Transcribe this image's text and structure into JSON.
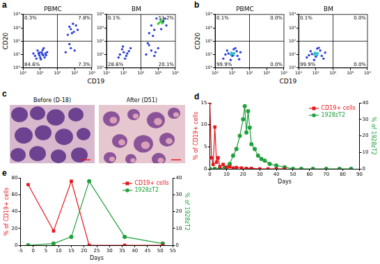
{
  "chart_data": [
    {
      "panel": "a",
      "type": "scatter",
      "log": true,
      "grid": false,
      "x_label": "CD19",
      "y_label": "CD20",
      "xlim": [
        1,
        10000
      ],
      "ylim": [
        1,
        10000
      ],
      "xticks": [
        {
          "value": 1,
          "label": "10⁰"
        },
        {
          "value": 10,
          "label": "10¹"
        },
        {
          "value": 100,
          "label": "10²"
        },
        {
          "value": 1000,
          "label": "10³"
        },
        {
          "value": 10000,
          "label": "10⁴"
        }
      ],
      "yticks": [
        {
          "value": 1,
          "label": "10⁰"
        },
        {
          "value": 10,
          "label": "10¹"
        },
        {
          "value": 100,
          "label": "10²"
        },
        {
          "value": 1000,
          "label": "10³"
        },
        {
          "value": 10000,
          "label": "10⁴"
        }
      ],
      "gates": {
        "x": 100,
        "y": 100
      },
      "plots": [
        {
          "title": "PBMC",
          "quadrant_labels": {
            "upper_left": "0.3%",
            "upper_right": "7.8%",
            "lower_left": "84.6%",
            "lower_right": "7.3%"
          },
          "series": [
            {
              "color": "#2b3fd6",
              "values": [
                [
                  5,
                  8
                ],
                [
                  8,
                  12
                ],
                [
                  10,
                  6
                ],
                [
                  12,
                  15
                ],
                [
                  15,
                  9
                ],
                [
                  7,
                  20
                ],
                [
                  20,
                  12
                ],
                [
                  6,
                  5
                ],
                [
                  9,
                  9
                ],
                [
                  14,
                  22
                ],
                [
                  11,
                  4.5
                ],
                [
                  18,
                  6
                ],
                [
                  25,
                  15
                ],
                [
                  4,
                  12
                ],
                [
                  16,
                  30
                ],
                [
                  9,
                  14
                ],
                [
                  13,
                  11
                ],
                [
                  22,
                  9
                ]
              ]
            },
            {
              "color": "#2b3fd6",
              "values": [
                [
                  400,
                  300
                ],
                [
                  600,
                  800
                ],
                [
                  900,
                  500
                ],
                [
                  1200,
                  1500
                ],
                [
                  500,
                  1200
                ],
                [
                  800,
                  2000
                ],
                [
                  1500,
                  700
                ],
                [
                  700,
                  400
                ]
              ]
            },
            {
              "color": "#2b3fd6",
              "values": [
                [
                  300,
                  15
                ],
                [
                  600,
                  30
                ],
                [
                  1000,
                  20
                ],
                [
                  500,
                  60
                ]
              ]
            }
          ]
        },
        {
          "title": "BM",
          "quadrant_labels": {
            "upper_left": "0.1%",
            "upper_right": "51.2%",
            "lower_left": "28.6%",
            "lower_right": "20.1%"
          },
          "series": [
            {
              "color": "#2b3fd6",
              "values": [
                [
                  6,
                  10
                ],
                [
                  10,
                  15
                ],
                [
                  14,
                  8
                ],
                [
                  8,
                  25
                ],
                [
                  20,
                  18
                ],
                [
                  12,
                  5
                ],
                [
                  5,
                  6
                ],
                [
                  25,
                  30
                ],
                [
                  16,
                  12
                ],
                [
                  9,
                  40
                ]
              ]
            },
            {
              "color": "#2b3fd6",
              "values": [
                [
                  300,
                  400
                ],
                [
                  500,
                  250
                ],
                [
                  2000,
                  3000
                ],
                [
                  800,
                  5000
                ],
                [
                  3000,
                  1500
                ],
                [
                  400,
                  1500
                ],
                [
                  1500,
                  800
                ],
                [
                  2500,
                  5000
                ],
                [
                  600,
                  700
                ]
              ]
            },
            {
              "color": "#3cc83c",
              "values": [
                [
                  1200,
                  2500
                ],
                [
                  1500,
                  3000
                ],
                [
                  1800,
                  2200
                ],
                [
                  1000,
                  2000
                ],
                [
                  2000,
                  3500
                ],
                [
                  1400,
                  4000
                ],
                [
                  1700,
                  2800
                ]
              ]
            },
            {
              "color": "#2b3fd6",
              "values": [
                [
                  200,
                  10
                ],
                [
                  400,
                  20
                ],
                [
                  700,
                  15
                ],
                [
                  1000,
                  30
                ],
                [
                  300,
                  50
                ],
                [
                  600,
                  8
                ],
                [
                  250,
                  70
                ]
              ]
            }
          ]
        }
      ]
    },
    {
      "panel": "b",
      "type": "scatter",
      "log": true,
      "grid": false,
      "x_label": "CD19",
      "y_label": "CD20",
      "xlim": [
        1,
        10000
      ],
      "ylim": [
        1,
        10000
      ],
      "xticks": [
        {
          "value": 1,
          "label": "10⁰"
        },
        {
          "value": 10,
          "label": "10¹"
        },
        {
          "value": 100,
          "label": "10²"
        },
        {
          "value": 1000,
          "label": "10³"
        },
        {
          "value": 10000,
          "label": "10⁴"
        }
      ],
      "yticks": [
        {
          "value": 1,
          "label": "10⁰"
        },
        {
          "value": 10,
          "label": "10¹"
        },
        {
          "value": 100,
          "label": "10²"
        },
        {
          "value": 1000,
          "label": "10³"
        },
        {
          "value": 10000,
          "label": "10⁴"
        }
      ],
      "gates": {
        "x": 100,
        "y": 100
      },
      "plots": [
        {
          "title": "PBMC",
          "quadrant_labels": {
            "upper_left": "0.1%",
            "upper_right": "0.0%",
            "lower_left": "99.9%",
            "lower_right": "0.0%"
          },
          "series": [
            {
              "color": "#2b3fd6",
              "values": [
                [
                  3,
                  5
                ],
                [
                  5,
                  20
                ],
                [
                  8,
                  4
                ],
                [
                  12,
                  25
                ],
                [
                  20,
                  8
                ],
                [
                  30,
                  15
                ],
                [
                  6,
                  12
                ],
                [
                  15,
                  30
                ],
                [
                  25,
                  4.5
                ],
                [
                  4,
                  10
                ],
                [
                  10,
                  8
                ],
                [
                  18,
                  18
                ]
              ]
            },
            {
              "color": "#2fc0c8",
              "values": [
                [
                  8,
                  10
                ],
                [
                  10,
                  12
                ],
                [
                  12,
                  9
                ],
                [
                  9,
                  14
                ],
                [
                  11,
                  11
                ],
                [
                  13,
                  13
                ]
              ]
            }
          ]
        },
        {
          "title": "BM",
          "quadrant_labels": {
            "upper_left": "0.1%",
            "upper_right": "0.0%",
            "lower_left": "99.9%",
            "lower_right": "0.0%"
          },
          "series": [
            {
              "color": "#2b3fd6",
              "values": [
                [
                  3,
                  6
                ],
                [
                  5,
                  18
                ],
                [
                  8,
                  4
                ],
                [
                  12,
                  28
                ],
                [
                  22,
                  8
                ],
                [
                  35,
                  14
                ],
                [
                  6,
                  11
                ],
                [
                  15,
                  32
                ],
                [
                  28,
                  5
                ],
                [
                  4,
                  9
                ],
                [
                  10,
                  7
                ],
                [
                  18,
                  20
                ]
              ]
            },
            {
              "color": "#2fc0c8",
              "values": [
                [
                  8,
                  10
                ],
                [
                  10,
                  12
                ],
                [
                  12,
                  9
                ],
                [
                  9,
                  14
                ],
                [
                  11,
                  11
                ],
                [
                  13,
                  13
                ]
              ]
            }
          ]
        }
      ]
    },
    {
      "panel": "d",
      "type": "line",
      "grid": false,
      "legend": "upper right",
      "x_label": "Days",
      "y_label": "% of CD19+ cells",
      "y2_label": "% of 1928zT2",
      "xlim": [
        0,
        90
      ],
      "xticks": [
        0,
        10,
        20,
        30,
        40,
        50,
        60,
        70,
        80,
        90
      ],
      "ylim": [
        0,
        15
      ],
      "yticks": [
        0,
        5,
        10,
        15
      ],
      "y2lim": [
        0,
        40
      ],
      "y2ticks": [
        0,
        10,
        20,
        30,
        40
      ],
      "series": [
        {
          "name": "CD19+ cells",
          "color": "#e8141b",
          "marker": "square",
          "x": [
            0,
            1,
            2,
            3,
            4,
            5,
            6,
            8,
            10,
            12,
            14,
            16,
            19,
            22,
            25,
            30,
            35,
            40,
            45
          ],
          "values": [
            15,
            2.5,
            1,
            9.5,
            1.5,
            2.5,
            0.5,
            1,
            0.3,
            0.5,
            0.2,
            0.3,
            0.2,
            0.1,
            0.1,
            0,
            0,
            0,
            0
          ]
        },
        {
          "name": "1928zT2",
          "color": "#1fa03c",
          "marker": "circle",
          "axis": "y2",
          "x": [
            0,
            3,
            6,
            9,
            12,
            14,
            16,
            18,
            20,
            21,
            22,
            23,
            24,
            25,
            27,
            29,
            31,
            33,
            36,
            40,
            45,
            50,
            55,
            62,
            70,
            78,
            85
          ],
          "values": [
            0,
            0,
            0,
            1,
            3,
            8,
            12,
            20,
            30,
            38,
            22,
            35,
            25,
            15,
            12,
            8,
            6,
            5,
            3,
            2,
            1,
            0,
            0,
            0,
            0,
            0,
            0
          ]
        }
      ]
    },
    {
      "panel": "e",
      "type": "line",
      "grid": false,
      "legend": "upper right",
      "x_label": "Days",
      "y_label": "% of CD19+ cells",
      "y2_label": "% of 1928zT2",
      "xlim": [
        -5,
        55
      ],
      "xticks": [
        -5,
        0,
        5,
        10,
        15,
        20,
        25,
        30,
        35,
        40,
        45,
        50,
        55
      ],
      "ylim": [
        0,
        80
      ],
      "yticks": [
        0,
        20,
        40,
        60,
        80
      ],
      "y2lim": [
        0,
        40
      ],
      "y2ticks": [
        0,
        10,
        20,
        30,
        40
      ],
      "series": [
        {
          "name": "CD19+ cells",
          "color": "#e8141b",
          "marker": "square",
          "x": [
            -2,
            8,
            15,
            22,
            36,
            51
          ],
          "values": [
            72,
            17,
            76,
            0,
            0,
            0
          ]
        },
        {
          "name": "1928zT2",
          "color": "#1fa03c",
          "marker": "circle",
          "axis": "y2",
          "x": [
            -2,
            8,
            15,
            22,
            36,
            51
          ],
          "values": [
            0,
            1,
            5,
            38,
            5,
            1
          ]
        }
      ]
    }
  ],
  "images": {
    "panel": "c",
    "captions": [
      "Before (D-18)",
      "After (D51)"
    ]
  }
}
